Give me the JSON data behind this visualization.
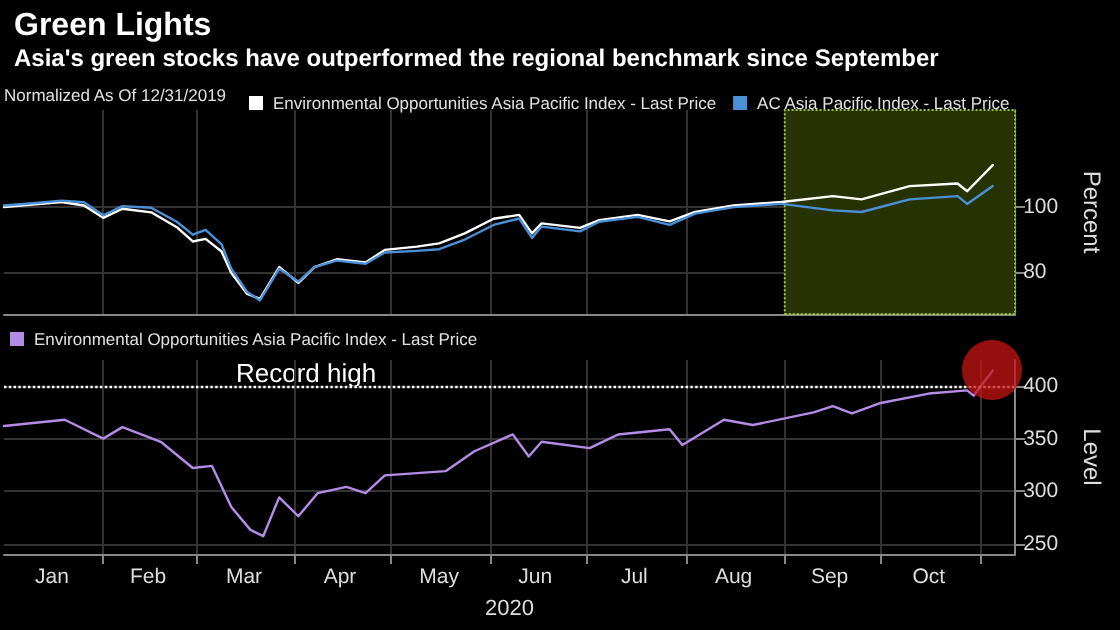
{
  "chart_data": [
    {
      "type": "line",
      "title": "Green Lights",
      "subtitle": "Asia's green stocks have outperformed the regional benchmark since September",
      "legend_title": "Normalized As Of 12/31/2019",
      "ylabel": "Percent",
      "legend": "top",
      "grid": true,
      "marker": "none",
      "line_style": "solid",
      "tick_labels": "y",
      "x": [
        "2020-01-01",
        "2020-01-10",
        "2020-01-19",
        "2020-01-26",
        "2020-02-01",
        "2020-02-07",
        "2020-02-16",
        "2020-02-24",
        "2020-02-29",
        "2020-03-04",
        "2020-03-09",
        "2020-03-12",
        "2020-03-17",
        "2020-03-21",
        "2020-03-27",
        "2020-04-02",
        "2020-04-07",
        "2020-04-14",
        "2020-04-23",
        "2020-04-29",
        "2020-05-09",
        "2020-05-16",
        "2020-05-24",
        "2020-06-02",
        "2020-06-10",
        "2020-06-14",
        "2020-06-17",
        "2020-06-29",
        "2020-07-05",
        "2020-07-17",
        "2020-07-27",
        "2020-08-04",
        "2020-08-16",
        "2020-08-31",
        "2020-09-16",
        "2020-09-25",
        "2020-10-10",
        "2020-10-25",
        "2020-10-28",
        "2020-11-05"
      ],
      "series": [
        {
          "name": "Environmental Opportunities Asia Pacific Index - Last Price",
          "color": "#ffffff",
          "values": [
            100,
            100.8,
            101.6,
            100.5,
            96.7,
            99.5,
            98.4,
            93.8,
            89.4,
            90.2,
            86.3,
            79.7,
            73.2,
            71.7,
            81.5,
            76.6,
            81.5,
            83.9,
            82.9,
            86.8,
            87.8,
            88.8,
            91.9,
            96.4,
            97.6,
            91.9,
            95,
            93.6,
            96,
            97.6,
            95.6,
            98.5,
            100.5,
            101.6,
            103.4,
            102.4,
            106.5,
            107.3,
            104.9,
            113
          ]
        },
        {
          "name": "AC Asia Pacific Index - Last Price",
          "color": "#4a90d9",
          "values": [
            100.5,
            101.2,
            102,
            101.5,
            97.5,
            100.3,
            99.8,
            95.5,
            91.5,
            93,
            88.5,
            81,
            73.8,
            71.2,
            81,
            77,
            81.5,
            83.5,
            82.5,
            86,
            86.5,
            87,
            90,
            94.5,
            96.5,
            90.5,
            94,
            92.5,
            95.5,
            97,
            94.5,
            98,
            100,
            101,
            99,
            98.5,
            102.4,
            103.4,
            101,
            106.5
          ]
        }
      ],
      "xlim": [
        "2020-01-01",
        "2020-11-12"
      ],
      "xticks": [
        {
          "value": "2020-02-01",
          "label": null
        },
        {
          "value": "2020-03-01",
          "label": null
        },
        {
          "value": "2020-04-01",
          "label": null
        },
        {
          "value": "2020-05-01",
          "label": null
        },
        {
          "value": "2020-06-01",
          "label": null
        },
        {
          "value": "2020-07-01",
          "label": null
        },
        {
          "value": "2020-08-01",
          "label": null
        },
        {
          "value": "2020-09-01",
          "label": null
        },
        {
          "value": "2020-10-01",
          "label": null
        },
        {
          "value": "2020-11-01",
          "label": null
        }
      ],
      "ylim": [
        67,
        130
      ],
      "yticks": [
        80,
        100
      ],
      "bands": [
        {
          "axis": "x",
          "from": "2020-09-01",
          "to": "2020-11-12",
          "color": "#263300"
        }
      ]
    },
    {
      "type": "line",
      "xlabel": "2020",
      "ylabel": "Level",
      "legend": "top left",
      "grid": true,
      "marker": "none",
      "line_style": "solid",
      "x": [
        "2020-01-01",
        "2020-01-20",
        "2020-02-01",
        "2020-02-07",
        "2020-02-19",
        "2020-02-29",
        "2020-03-06",
        "2020-03-12",
        "2020-03-18",
        "2020-03-22",
        "2020-03-27",
        "2020-04-02",
        "2020-04-08",
        "2020-04-17",
        "2020-04-23",
        "2020-04-29",
        "2020-05-18",
        "2020-05-27",
        "2020-06-08",
        "2020-06-13",
        "2020-06-17",
        "2020-07-02",
        "2020-07-11",
        "2020-07-27",
        "2020-07-31",
        "2020-08-13",
        "2020-08-22",
        "2020-09-10",
        "2020-09-16",
        "2020-09-22",
        "2020-10-01",
        "2020-10-16",
        "2020-10-28",
        "2020-10-30",
        "2020-11-05"
      ],
      "series": [
        {
          "name": "Environmental Opportunities Asia Pacific Index - Last Price",
          "color": "#b48ce6",
          "values": [
            362,
            368,
            350,
            361,
            347,
            322,
            324,
            285,
            263,
            257,
            294,
            276,
            298,
            304,
            298,
            315,
            319,
            338,
            354,
            333,
            347,
            341,
            354,
            359,
            344,
            368,
            363,
            375,
            381,
            374,
            384,
            393,
            396,
            391,
            415
          ]
        }
      ],
      "xlim": [
        "2020-01-01",
        "2020-11-12"
      ],
      "xticks": [
        {
          "value": "2020-01-16",
          "label": "Jan"
        },
        {
          "value": "2020-02-15",
          "label": "Feb"
        },
        {
          "value": "2020-03-16",
          "label": "Mar"
        },
        {
          "value": "2020-04-15",
          "label": "Apr"
        },
        {
          "value": "2020-05-16",
          "label": "May"
        },
        {
          "value": "2020-06-15",
          "label": "Jun"
        },
        {
          "value": "2020-07-16",
          "label": "Jul"
        },
        {
          "value": "2020-08-16",
          "label": "Aug"
        },
        {
          "value": "2020-09-15",
          "label": "Sep"
        },
        {
          "value": "2020-10-16",
          "label": "Oct"
        },
        {
          "value": "2020-02-01",
          "label": null
        },
        {
          "value": "2020-03-01",
          "label": null
        },
        {
          "value": "2020-04-01",
          "label": null
        },
        {
          "value": "2020-05-01",
          "label": null
        },
        {
          "value": "2020-06-01",
          "label": null
        },
        {
          "value": "2020-07-01",
          "label": null
        },
        {
          "value": "2020-08-01",
          "label": null
        },
        {
          "value": "2020-09-01",
          "label": null
        },
        {
          "value": "2020-10-01",
          "label": null
        },
        {
          "value": "2020-11-01",
          "label": null
        }
      ],
      "ylim": [
        240,
        425
      ],
      "yticks": [
        250,
        300,
        350,
        400
      ],
      "ref_lines": [
        {
          "axis": "y",
          "value": 400,
          "color": "#ffffff",
          "line_style": "dotted"
        }
      ],
      "annotations": [
        "Record high"
      ]
    }
  ]
}
